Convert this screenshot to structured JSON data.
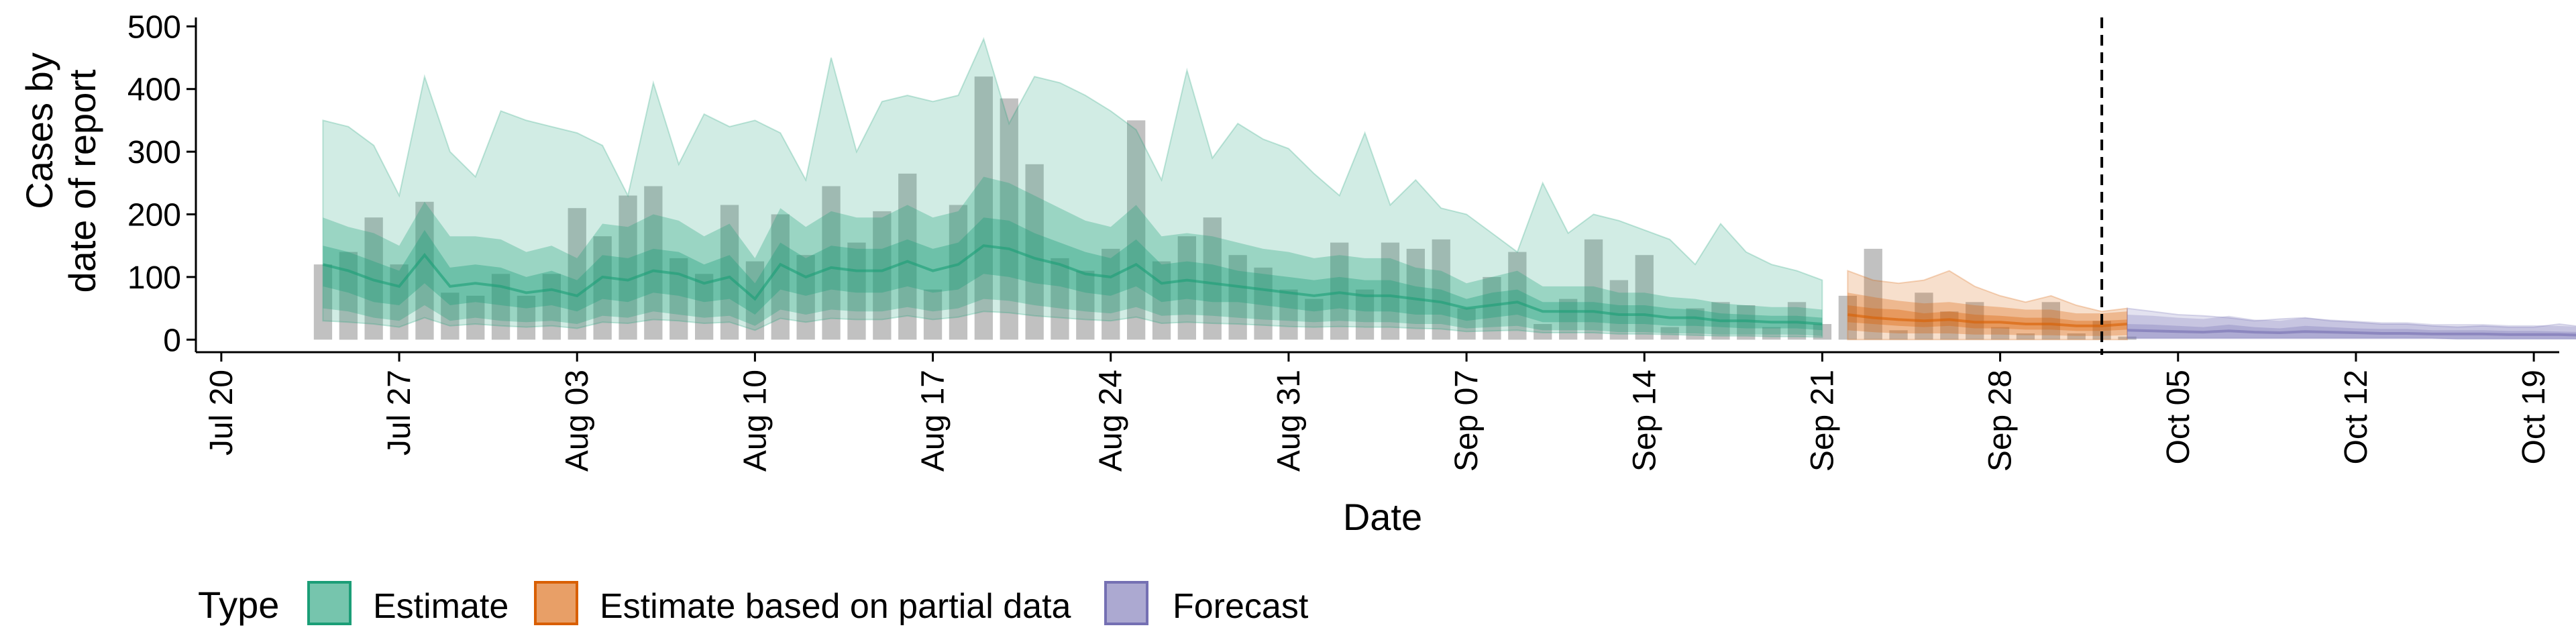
{
  "colors": {
    "estimate": "#1b9e77",
    "partial": "#d95f02",
    "forecast": "#7570b3",
    "bars": "#a6a6a6",
    "axis": "#000000"
  },
  "chart_data": {
    "type": "bar",
    "xlabel": "Date",
    "ylabel_lines": [
      "Cases by",
      "date of report"
    ],
    "x_range": [
      "2020-07-19",
      "2020-10-20"
    ],
    "ylim": [
      -20,
      510
    ],
    "y_ticks": [
      0,
      100,
      200,
      300,
      400,
      500
    ],
    "x_ticks": [
      {
        "date": "2020-07-20",
        "label": "Jul 20"
      },
      {
        "date": "2020-07-27",
        "label": "Jul 27"
      },
      {
        "date": "2020-08-03",
        "label": "Aug 03"
      },
      {
        "date": "2020-08-10",
        "label": "Aug 10"
      },
      {
        "date": "2020-08-17",
        "label": "Aug 17"
      },
      {
        "date": "2020-08-24",
        "label": "Aug 24"
      },
      {
        "date": "2020-08-31",
        "label": "Aug 31"
      },
      {
        "date": "2020-09-07",
        "label": "Sep 07"
      },
      {
        "date": "2020-09-14",
        "label": "Sep 14"
      },
      {
        "date": "2020-09-21",
        "label": "Sep 21"
      },
      {
        "date": "2020-09-28",
        "label": "Sep 28"
      },
      {
        "date": "2020-10-05",
        "label": "Oct 05"
      },
      {
        "date": "2020-10-12",
        "label": "Oct 12"
      },
      {
        "date": "2020-10-19",
        "label": "Oct 19"
      }
    ],
    "vline_date": "2020-10-02",
    "grid": false,
    "legend": {
      "position": "bottom",
      "title": "Type",
      "entries": [
        {
          "key": "estimate",
          "label": "Estimate"
        },
        {
          "key": "partial",
          "label": "Estimate based on partial data"
        },
        {
          "key": "forecast",
          "label": "Forecast"
        }
      ]
    },
    "observed_cases": {
      "start_date": "2020-07-24",
      "values": [
        120,
        140,
        195,
        120,
        220,
        75,
        70,
        105,
        70,
        105,
        210,
        165,
        230,
        245,
        130,
        105,
        215,
        125,
        200,
        135,
        245,
        155,
        205,
        265,
        80,
        215,
        420,
        385,
        280,
        130,
        110,
        145,
        350,
        125,
        165,
        195,
        135,
        115,
        80,
        65,
        155,
        80,
        155,
        145,
        160,
        50,
        100,
        140,
        25,
        65,
        160,
        95,
        135,
        20,
        50,
        60,
        55,
        20,
        60,
        25,
        70,
        145,
        15,
        75,
        45,
        60,
        20,
        10,
        60,
        10,
        30,
        5
      ]
    },
    "estimate": {
      "start_date": "2020-07-24",
      "median": [
        120,
        110,
        95,
        85,
        135,
        85,
        90,
        85,
        75,
        80,
        70,
        100,
        95,
        110,
        105,
        90,
        100,
        65,
        120,
        100,
        115,
        110,
        110,
        125,
        110,
        120,
        150,
        145,
        130,
        120,
        105,
        100,
        120,
        90,
        95,
        90,
        85,
        80,
        75,
        70,
        75,
        70,
        70,
        65,
        60,
        50,
        55,
        60,
        45,
        45,
        45,
        40,
        40,
        35,
        35,
        30,
        30,
        28,
        28,
        25
      ],
      "lower50": [
        85,
        75,
        60,
        55,
        90,
        55,
        60,
        55,
        50,
        55,
        45,
        65,
        60,
        75,
        70,
        60,
        65,
        40,
        80,
        70,
        80,
        75,
        75,
        85,
        75,
        80,
        105,
        100,
        90,
        85,
        75,
        70,
        85,
        60,
        65,
        60,
        60,
        55,
        50,
        45,
        50,
        45,
        45,
        40,
        40,
        30,
        35,
        40,
        28,
        28,
        28,
        25,
        25,
        22,
        22,
        20,
        18,
        18,
        18,
        15
      ],
      "upper50": [
        150,
        140,
        125,
        110,
        175,
        115,
        120,
        115,
        100,
        110,
        95,
        135,
        130,
        145,
        140,
        120,
        135,
        90,
        155,
        130,
        150,
        145,
        145,
        160,
        145,
        155,
        195,
        190,
        170,
        155,
        140,
        130,
        160,
        120,
        125,
        120,
        110,
        105,
        100,
        95,
        100,
        95,
        95,
        85,
        80,
        65,
        75,
        80,
        60,
        60,
        60,
        55,
        55,
        50,
        48,
        42,
        40,
        38,
        38,
        35
      ],
      "lower90": [
        50,
        45,
        35,
        30,
        55,
        30,
        35,
        30,
        28,
        30,
        25,
        38,
        35,
        45,
        40,
        35,
        38,
        22,
        48,
        40,
        48,
        45,
        45,
        52,
        45,
        50,
        65,
        62,
        55,
        50,
        45,
        42,
        52,
        38,
        40,
        38,
        35,
        32,
        30,
        28,
        30,
        28,
        28,
        25,
        25,
        18,
        20,
        22,
        15,
        15,
        15,
        12,
        12,
        10,
        10,
        8,
        8,
        8,
        8,
        6
      ],
      "upper90": [
        195,
        180,
        170,
        150,
        220,
        165,
        165,
        160,
        140,
        150,
        130,
        185,
        180,
        200,
        190,
        165,
        185,
        130,
        210,
        180,
        205,
        195,
        195,
        215,
        195,
        205,
        260,
        250,
        230,
        210,
        190,
        180,
        215,
        165,
        170,
        165,
        155,
        145,
        140,
        130,
        135,
        130,
        130,
        115,
        110,
        90,
        100,
        110,
        85,
        85,
        85,
        75,
        75,
        68,
        65,
        58,
        55,
        52,
        52,
        48
      ],
      "upper_outer": [
        350,
        340,
        310,
        230,
        420,
        300,
        260,
        365,
        350,
        340,
        330,
        310,
        230,
        410,
        280,
        360,
        340,
        350,
        330,
        255,
        450,
        300,
        380,
        390,
        380,
        390,
        480,
        345,
        420,
        410,
        390,
        365,
        335,
        255,
        430,
        290,
        345,
        320,
        305,
        265,
        230,
        330,
        215,
        255,
        210,
        200,
        170,
        140,
        250,
        170,
        200,
        190,
        175,
        160,
        120,
        185,
        140,
        120,
        110,
        95
      ],
      "lower_outer": [
        30,
        28,
        25,
        20,
        35,
        22,
        25,
        22,
        20,
        22,
        18,
        28,
        26,
        32,
        30,
        26,
        28,
        15,
        34,
        28,
        34,
        32,
        32,
        38,
        32,
        36,
        45,
        43,
        38,
        35,
        32,
        30,
        36,
        26,
        28,
        26,
        25,
        23,
        21,
        20,
        21,
        20,
        20,
        18,
        17,
        13,
        14,
        15,
        11,
        11,
        11,
        9,
        9,
        8,
        7,
        6,
        6,
        5,
        5,
        4
      ]
    },
    "partial": {
      "start_date": "2020-09-22",
      "median": [
        40,
        35,
        32,
        30,
        32,
        28,
        28,
        25,
        25,
        22,
        22,
        25
      ],
      "upper50": [
        55,
        50,
        48,
        42,
        45,
        40,
        38,
        35,
        35,
        30,
        30,
        32
      ],
      "lower50": [
        28,
        25,
        22,
        20,
        22,
        18,
        18,
        16,
        16,
        14,
        14,
        16
      ],
      "upper90": [
        75,
        68,
        62,
        58,
        60,
        55,
        52,
        48,
        48,
        42,
        42,
        45
      ],
      "lower90": [
        15,
        12,
        10,
        10,
        10,
        8,
        8,
        7,
        7,
        6,
        6,
        7
      ],
      "upper_outer": [
        110,
        95,
        90,
        95,
        110,
        85,
        70,
        60,
        70,
        55,
        45,
        50
      ]
    },
    "forecast": {
      "start_date": "2020-10-03",
      "median": [
        15,
        14,
        13,
        12,
        14,
        12,
        11,
        13,
        12,
        11,
        10,
        10,
        9,
        9,
        9,
        8,
        8,
        8,
        7,
        7,
        7,
        6,
        6,
        6,
        6,
        6
      ],
      "upper50": [
        25,
        24,
        22,
        20,
        24,
        20,
        18,
        22,
        20,
        18,
        17,
        17,
        15,
        15,
        15,
        14,
        14,
        13,
        12,
        12,
        12,
        11,
        11,
        11,
        11,
        11
      ],
      "upper90": [
        40,
        38,
        35,
        33,
        38,
        32,
        30,
        35,
        32,
        30,
        28,
        28,
        25,
        25,
        25,
        23,
        23,
        22,
        20,
        20,
        20,
        18,
        18,
        18,
        18,
        18
      ],
      "upper_outer": [
        50,
        45,
        40,
        38,
        35,
        30,
        33,
        35,
        30,
        28,
        25,
        25,
        22,
        20,
        22,
        20,
        20,
        25,
        20,
        22,
        20,
        18,
        20,
        25,
        25,
        25
      ],
      "lower": [
        2,
        2,
        2,
        2,
        2,
        2,
        2,
        2,
        2,
        2,
        2,
        2,
        2,
        1,
        1,
        1,
        1,
        1,
        1,
        1,
        1,
        1,
        1,
        1,
        1,
        1
      ]
    }
  }
}
